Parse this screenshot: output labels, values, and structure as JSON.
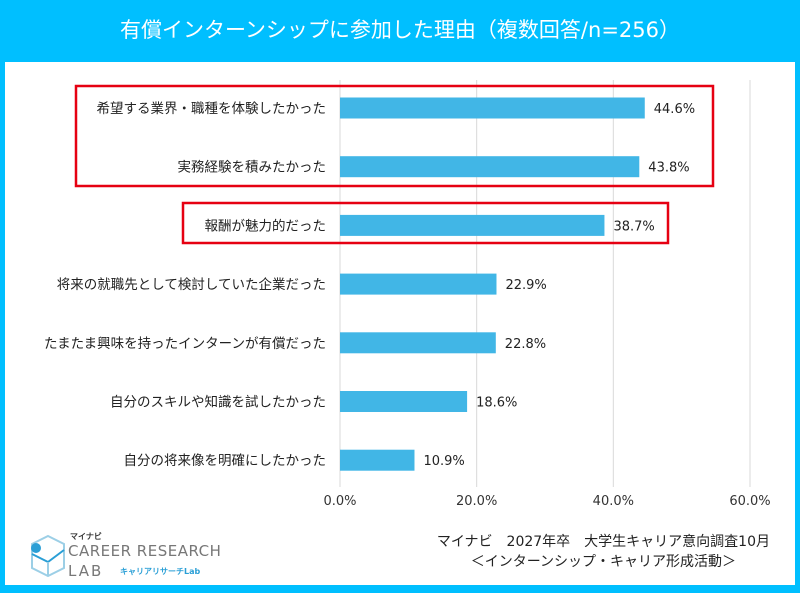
{
  "title": "有償インターンシップに参加した理由（複数回答/n=256）",
  "chart_data": {
    "type": "bar",
    "orientation": "horizontal",
    "title": "有償インターンシップに参加した理由（複数回答/n=256）",
    "categories": [
      "希望する業界・職種を体験したかった",
      "実務経験を積みたかった",
      "報酬が魅力的だった",
      "将来の就職先として検討していた企業だった",
      "たまたま興味を持ったインターンが有償だった",
      "自分のスキルや知識を試したかった",
      "自分の将来像を明確にしたかった"
    ],
    "values": [
      44.6,
      43.8,
      38.7,
      22.9,
      22.8,
      18.6,
      10.9
    ],
    "data_labels": [
      "44.6%",
      "43.8%",
      "38.7%",
      "22.9%",
      "22.8%",
      "18.6%",
      "10.9%"
    ],
    "xlim": [
      0,
      60
    ],
    "ticks": [
      "0.0%",
      "20.0%",
      "40.0%",
      "60.0%"
    ],
    "grid": true,
    "bar_color": "#41B6E6",
    "highlight_color": "#E60012",
    "highlight_groups": [
      [
        0,
        1
      ],
      [
        2
      ]
    ]
  },
  "source": {
    "line1": "マイナビ　2027年卒　大学生キャリア意向調査10月",
    "line2": "＜インターンシップ・キャリア形成活動＞"
  },
  "logo": {
    "top": "マイナビ",
    "main": "CAREER RESEARCH",
    "lab": "LAB",
    "kana": "キャリアリサーチLab"
  },
  "frame_color": "#00BFFF"
}
